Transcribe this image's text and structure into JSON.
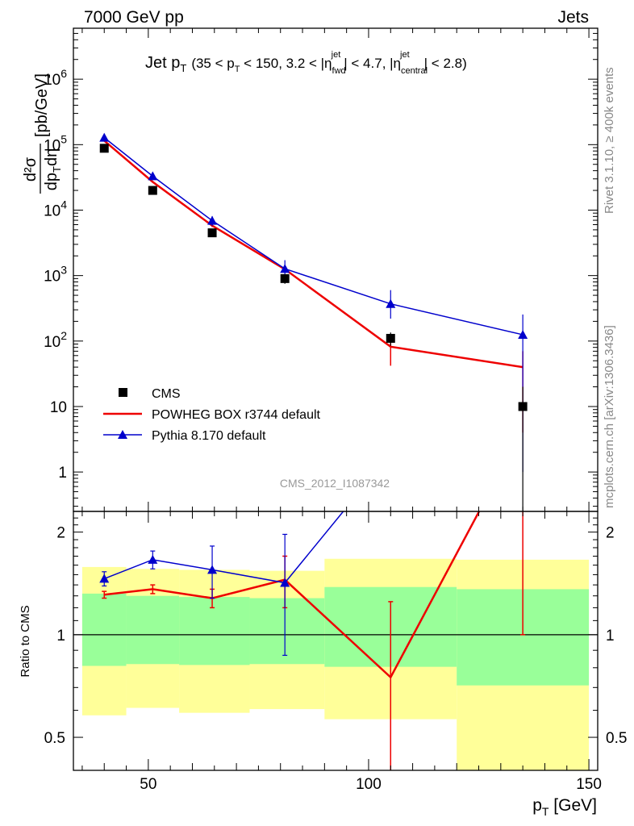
{
  "header": {
    "left": "7000 GeV pp",
    "right": "Jets"
  },
  "side": {
    "rivet": "Rivet 3.1.10, ≥ 400k events",
    "mcplots": "mcplots.cern.ch [arXiv:1306.3436]"
  },
  "plot_title": {
    "main": "Jet p",
    "main_sub": "T",
    "cuts": "(35 < p",
    "cuts_sub": "T",
    "cuts2": " < 150, 3.2 < |η",
    "cuts2_sup": "jet",
    "cuts2_sub": "fwd",
    "cuts3": "| < 4.7, |η",
    "cuts3_sup": "jet",
    "cuts3_sub": "central",
    "cuts4": "| < 2.8)"
  },
  "watermark": "CMS_2012_I1087342",
  "legend": {
    "cms": "CMS",
    "powheg": "POWHEG BOX r3744 default",
    "pythia": "Pythia 8.170 default"
  },
  "axes": {
    "ylabel_top": "[pb/GeV]",
    "ylabel_ratio": "Ratio to CMS",
    "xlabel": "p",
    "xlabel_sub": "T",
    "xlabel_unit": " [GeV]"
  },
  "colors": {
    "data": "#000000",
    "powheg": "#ee0000",
    "pythia": "#0000cc",
    "band_inner": "#99ff99",
    "band_outer": "#ffff99"
  },
  "chart_data": {
    "type": "scatter",
    "x_range": [
      33,
      152
    ],
    "y_range_main": [
      0.25,
      6000000
    ],
    "y_scale_main": "log",
    "y_range_ratio": [
      0.4,
      2.3
    ],
    "y_scale_ratio": "log",
    "x_ticks": [
      "50",
      "100",
      "150"
    ],
    "y_ticks_main": [
      "1",
      "10",
      "10^2",
      "10^3",
      "10^4",
      "10^5",
      "10^6"
    ],
    "y_ticks_ratio": [
      "0.5",
      "1",
      "2"
    ],
    "cms": {
      "x": [
        40,
        51,
        64.5,
        81,
        105,
        135
      ],
      "y": [
        88000,
        20000,
        4500,
        900,
        110,
        10
      ],
      "yerr_low": [
        10000,
        2500,
        600,
        150,
        25,
        9.9
      ],
      "yerr_high": [
        10000,
        2500,
        600,
        150,
        25,
        10
      ]
    },
    "powheg": {
      "x": [
        40,
        51,
        64.5,
        81,
        105,
        135
      ],
      "y": [
        115000,
        27000,
        5800,
        1250,
        82,
        40
      ],
      "yerr_low": [
        3000,
        800,
        300,
        150,
        40,
        36
      ],
      "yerr_high": [
        3000,
        800,
        300,
        150,
        40,
        30
      ]
    },
    "pythia": {
      "x": [
        40,
        51,
        64.5,
        81,
        105,
        135
      ],
      "y": [
        128000,
        33000,
        6900,
        1270,
        370,
        125
      ],
      "yerr_low": [
        5000,
        2000,
        1200,
        450,
        150,
        124
      ],
      "yerr_high": [
        5000,
        2000,
        1200,
        450,
        230,
        130
      ]
    },
    "ratio": {
      "powheg": {
        "y": [
          1.31,
          1.36,
          1.28,
          1.45,
          0.75,
          4.0
        ],
        "err": [
          0.03,
          0.04,
          0.08,
          0.25,
          0.5,
          3.0
        ]
      },
      "pythia": {
        "y": [
          1.46,
          1.66,
          1.55,
          1.42,
          3.4,
          12.0
        ],
        "err": [
          0.07,
          0.1,
          0.27,
          0.55,
          0.9,
          5.0
        ]
      },
      "bands": {
        "edges": [
          35,
          45,
          57,
          73,
          90,
          120,
          150
        ],
        "inner_low": [
          0.81,
          0.82,
          0.815,
          0.82,
          0.805,
          0.71
        ],
        "inner_high": [
          1.32,
          1.3,
          1.29,
          1.28,
          1.38,
          1.36
        ],
        "outer_low": [
          0.58,
          0.61,
          0.59,
          0.605,
          0.565,
          0.38
        ],
        "outer_high": [
          1.58,
          1.56,
          1.55,
          1.54,
          1.67,
          1.66
        ]
      }
    }
  }
}
